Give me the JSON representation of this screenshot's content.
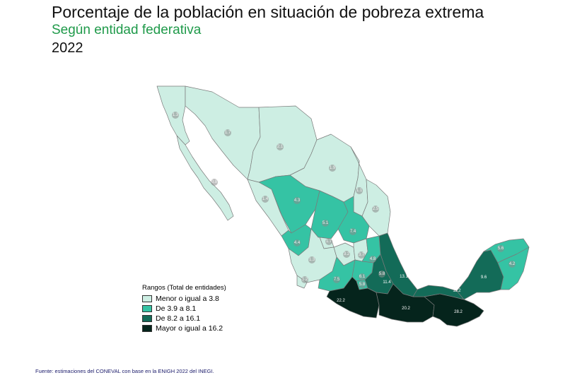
{
  "header": {
    "title": "Porcentaje de la población en situación de pobreza extrema",
    "subtitle": "Según entidad federativa",
    "year": "2022"
  },
  "colors": {
    "subtitle": "#1f9a4a",
    "range_1": "#cdeee3",
    "range_2": "#35c3a4",
    "range_3": "#136b58",
    "range_4": "#05241c",
    "border": "#7a7a7a",
    "label_bubble": "#8a8a8a"
  },
  "legend": {
    "title": "Rangos  (Total de entidades)",
    "items": [
      {
        "label": "Menor o igual a 3.8",
        "color": "#cdeee3"
      },
      {
        "label": "De 3.9 a 8.1",
        "color": "#35c3a4"
      },
      {
        "label": "De 8.2 a 16.1",
        "color": "#136b58"
      },
      {
        "label": "Mayor o igual a 16.2",
        "color": "#05241c"
      }
    ]
  },
  "map_labels": [
    {
      "state": "Baja California",
      "value": "1.3",
      "range": 1
    },
    {
      "state": "Sonora",
      "value": "1.7",
      "range": 1
    },
    {
      "state": "Chihuahua",
      "value": "2.1",
      "range": 1
    },
    {
      "state": "Coahuila",
      "value": "1.9",
      "range": 1
    },
    {
      "state": "Baja California Sur",
      "value": "0.8",
      "range": 1
    },
    {
      "state": "Nuevo León",
      "value": "1.1",
      "range": 1
    },
    {
      "state": "Sinaloa",
      "value": "1.4",
      "range": 1
    },
    {
      "state": "Tamaulipas",
      "value": "2.5",
      "range": 1
    },
    {
      "state": "Durango",
      "value": "4.3",
      "range": 2
    },
    {
      "state": "Zacatecas",
      "value": "5.1",
      "range": 2
    },
    {
      "state": "San Luis Potosí",
      "value": "7.4",
      "range": 2
    },
    {
      "state": "Nayarit",
      "value": "4.4",
      "range": 2
    },
    {
      "state": "Aguascalientes",
      "value": "1.7",
      "range": 1
    },
    {
      "state": "Jalisco",
      "value": "1.3",
      "range": 1
    },
    {
      "state": "Guanajuato",
      "value": "3.2",
      "range": 1
    },
    {
      "state": "Querétaro",
      "value": "3.7",
      "range": 1
    },
    {
      "state": "Hidalgo",
      "value": "4.8",
      "range": 2
    },
    {
      "state": "Colima",
      "value": "1.2",
      "range": 1
    },
    {
      "state": "Michoacán",
      "value": "7.5",
      "range": 2
    },
    {
      "state": "Estado de México",
      "value": "6.1",
      "range": 2
    },
    {
      "state": "Tlaxcala",
      "value": "5.8",
      "range": 2
    },
    {
      "state": "Morelos",
      "value": "5.8",
      "range": 2
    },
    {
      "state": "Puebla",
      "value": "11.4",
      "range": 3
    },
    {
      "state": "Veracruz",
      "value": "13.1",
      "range": 3
    },
    {
      "state": "Tabasco",
      "value": "11.2",
      "range": 3
    },
    {
      "state": "Campeche",
      "value": "9.6",
      "range": 3
    },
    {
      "state": "Yucatán",
      "value": "5.6",
      "range": 2
    },
    {
      "state": "Quintana Roo",
      "value": "4.2",
      "range": 2
    },
    {
      "state": "Guerrero",
      "value": "22.2",
      "range": 4
    },
    {
      "state": "Oaxaca",
      "value": "20.2",
      "range": 4
    },
    {
      "state": "Chiapas",
      "value": "28.2",
      "range": 4
    }
  ],
  "source": "Fuente: estimaciones del CONEVAL con base en la ENIGH 2022 del INEGI."
}
